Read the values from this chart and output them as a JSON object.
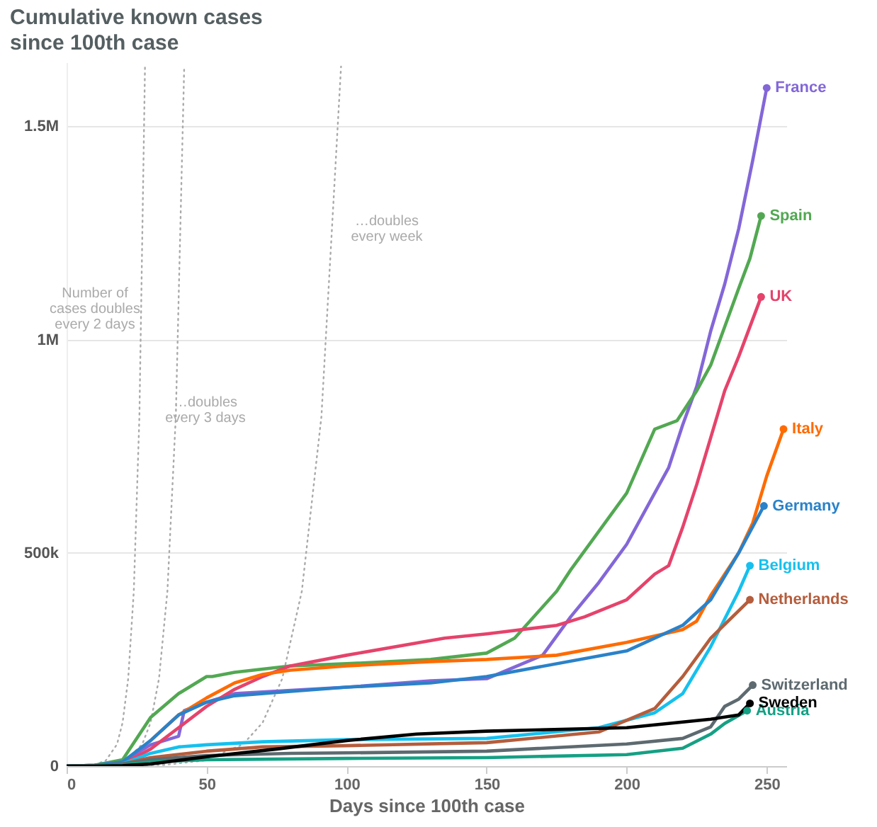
{
  "chart_data": {
    "type": "line",
    "title": "Cumulative known cases\nsince 100th case",
    "xlabel": "Days since 100th case",
    "xlim": [
      0,
      257
    ],
    "xticks": [
      0,
      50,
      100,
      150,
      200,
      250
    ],
    "ylim": [
      0,
      1650000
    ],
    "yticks": [
      {
        "value": 0,
        "label": "0"
      },
      {
        "value": 500000,
        "label": "500k"
      },
      {
        "value": 1000000,
        "label": "1M"
      },
      {
        "value": 1500000,
        "label": "1.5M"
      }
    ],
    "grid": "y",
    "legend": false,
    "annotations": [
      "Number of\ncases doubles\nevery 2 days",
      "…doubles\nevery 3 days",
      "…doubles\nevery week"
    ],
    "series": [
      {
        "color": "#aaaaaa",
        "line_style": "dotted",
        "x": [
          0,
          10,
          14,
          18,
          20,
          22,
          24,
          26,
          28
        ],
        "values": [
          0,
          3000,
          13000,
          51000,
          102000,
          205000,
          410000,
          820000,
          1640000
        ]
      },
      {
        "color": "#aaaaaa",
        "line_style": "dotted",
        "x": [
          0,
          15,
          21,
          27,
          30,
          33,
          36,
          39,
          42
        ],
        "values": [
          0,
          3000,
          13000,
          51000,
          102000,
          205000,
          410000,
          820000,
          1640000
        ]
      },
      {
        "color": "#aaaaaa",
        "line_style": "dotted",
        "x": [
          0,
          35,
          49,
          63,
          70,
          77,
          84,
          91,
          98
        ],
        "values": [
          0,
          3000,
          13000,
          51000,
          102000,
          205000,
          410000,
          820000,
          1640000
        ]
      },
      {
        "name": "France",
        "color": "#8367d8",
        "line_style": "solid",
        "x": [
          0,
          10,
          20,
          30,
          40,
          42,
          50,
          60,
          100,
          130,
          150,
          170,
          180,
          190,
          200,
          210,
          215,
          220,
          225,
          230,
          235,
          240,
          245,
          250
        ],
        "values": [
          0,
          2000,
          10000,
          50000,
          70000,
          130000,
          150000,
          170000,
          185000,
          200000,
          205000,
          260000,
          350000,
          430000,
          520000,
          640000,
          700000,
          800000,
          890000,
          1020000,
          1130000,
          1260000,
          1420000,
          1590000
        ]
      },
      {
        "name": "Spain",
        "color": "#52a852",
        "line_style": "solid",
        "x": [
          0,
          10,
          20,
          30,
          40,
          50,
          52,
          60,
          80,
          100,
          130,
          150,
          160,
          175,
          180,
          200,
          210,
          218,
          225,
          230,
          235,
          240,
          244,
          248
        ],
        "values": [
          0,
          2000,
          15000,
          114000,
          170000,
          210000,
          210000,
          220000,
          235000,
          240000,
          250000,
          265000,
          300000,
          410000,
          460000,
          640000,
          790000,
          810000,
          880000,
          940000,
          1030000,
          1120000,
          1190000,
          1290000
        ]
      },
      {
        "name": "UK",
        "color": "#e5436b",
        "line_style": "solid",
        "x": [
          0,
          10,
          20,
          30,
          40,
          50,
          60,
          70,
          80,
          100,
          135,
          150,
          175,
          185,
          200,
          210,
          215,
          220,
          225,
          230,
          235,
          240,
          248
        ],
        "values": [
          0,
          1000,
          5000,
          40000,
          90000,
          140000,
          180000,
          210000,
          235000,
          260000,
          300000,
          310000,
          330000,
          350000,
          390000,
          450000,
          470000,
          560000,
          660000,
          770000,
          880000,
          960000,
          1100000
        ]
      },
      {
        "name": "Italy",
        "color": "#ff6b00",
        "line_style": "solid",
        "x": [
          30,
          40,
          50,
          60,
          70,
          80,
          100,
          130,
          150,
          175,
          200,
          220,
          225,
          230,
          240,
          245,
          250,
          256
        ],
        "values": [
          60000,
          120000,
          160000,
          195000,
          215000,
          225000,
          235000,
          245000,
          250000,
          260000,
          290000,
          320000,
          340000,
          400000,
          500000,
          570000,
          680000,
          790000
        ]
      },
      {
        "name": "Germany",
        "color": "#2a82c9",
        "line_style": "solid",
        "x": [
          0,
          10,
          20,
          30,
          40,
          50,
          60,
          80,
          100,
          130,
          150,
          200,
          220,
          230,
          240,
          249
        ],
        "values": [
          0,
          2000,
          10000,
          60000,
          120000,
          150000,
          165000,
          175000,
          185000,
          195000,
          210000,
          270000,
          330000,
          390000,
          500000,
          610000
        ]
      },
      {
        "name": "Belgium",
        "color": "#15c0ee",
        "line_style": "solid",
        "x": [
          0,
          10,
          20,
          30,
          40,
          50,
          70,
          100,
          150,
          190,
          210,
          220,
          230,
          240,
          244
        ],
        "values": [
          0,
          1000,
          5000,
          30000,
          45000,
          50000,
          57000,
          62000,
          65000,
          90000,
          125000,
          170000,
          280000,
          410000,
          470000
        ]
      },
      {
        "name": "Netherlands",
        "color": "#b55d3c",
        "line_style": "solid",
        "x": [
          0,
          10,
          20,
          30,
          50,
          70,
          100,
          150,
          190,
          210,
          220,
          230,
          244
        ],
        "values": [
          0,
          1000,
          5000,
          20000,
          35000,
          45000,
          48000,
          55000,
          80000,
          135000,
          210000,
          300000,
          390000
        ]
      },
      {
        "name": "Switzerland",
        "color": "#5d6a70",
        "line_style": "solid",
        "x": [
          0,
          10,
          20,
          30,
          50,
          80,
          100,
          150,
          200,
          220,
          230,
          235,
          240,
          245
        ],
        "values": [
          0,
          1000,
          5000,
          15000,
          25000,
          30000,
          31000,
          35000,
          52000,
          65000,
          92000,
          140000,
          157000,
          190000
        ]
      },
      {
        "name": "Austria",
        "color": "#15a084",
        "line_style": "solid",
        "x": [
          0,
          10,
          20,
          30,
          50,
          100,
          150,
          200,
          220,
          230,
          235,
          243
        ],
        "values": [
          0,
          0,
          3000,
          10000,
          15000,
          18000,
          20000,
          27000,
          42000,
          75000,
          100000,
          130000
        ]
      },
      {
        "name": "Sweden",
        "color": "#000000",
        "line_style": "solid",
        "x": [
          0,
          10,
          20,
          30,
          50,
          75,
          100,
          125,
          150,
          200,
          230,
          240,
          244
        ],
        "values": [
          0,
          0,
          1000,
          5000,
          22000,
          40000,
          60000,
          75000,
          82000,
          90000,
          110000,
          120000,
          147000
        ]
      }
    ]
  }
}
